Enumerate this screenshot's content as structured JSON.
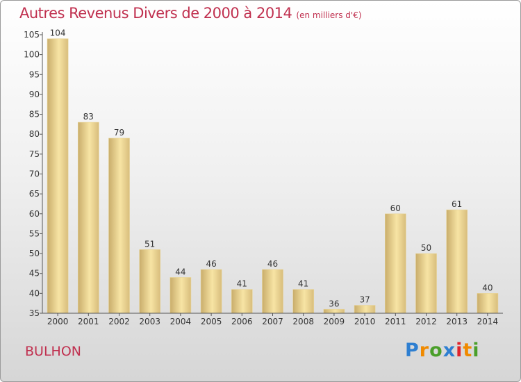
{
  "chart_title": "Autres Revenus Divers de 2000 à 2014",
  "chart_unit": "(en milliers d'€)",
  "place": "BULHON",
  "brand": {
    "letters": [
      "P",
      "r",
      "o",
      "x",
      "i",
      "t",
      "i"
    ],
    "colors": [
      "#2e7fd1",
      "#f08a00",
      "#4a9f2a",
      "#2e7fd1",
      "#e0232c",
      "#f08a00",
      "#4a9f2a"
    ]
  },
  "colors": {
    "bar_light": "#f7e4a4",
    "bar_dark": "#c9ad6b",
    "axis": "#555555",
    "grid": "#d0d0d0"
  },
  "chart_data": {
    "type": "bar",
    "title": "Autres Revenus Divers de 2000 à 2014",
    "xlabel": "",
    "ylabel": "",
    "categories": [
      "2000",
      "2001",
      "2002",
      "2003",
      "2004",
      "2005",
      "2006",
      "2007",
      "2008",
      "2009",
      "2010",
      "2011",
      "2012",
      "2013",
      "2014"
    ],
    "values": [
      104,
      83,
      79,
      51,
      44,
      46,
      41,
      46,
      41,
      36,
      37,
      60,
      50,
      61,
      40
    ],
    "ylim": [
      35,
      105
    ],
    "yticks": [
      35,
      40,
      45,
      50,
      55,
      60,
      65,
      70,
      75,
      80,
      85,
      90,
      95,
      100,
      105
    ],
    "grid": false,
    "legend": "none"
  }
}
